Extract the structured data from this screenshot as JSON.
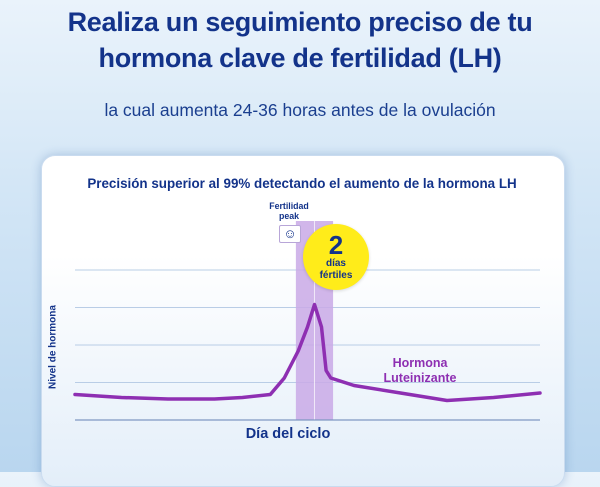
{
  "header": {
    "headline_line1": "Realiza un seguimiento preciso de tu",
    "headline_line2": "hormona clave de fertilidad (LH)",
    "subheadline": "la cual aumenta 24-36 horas antes de la ovulación"
  },
  "badge": {
    "number": "2",
    "line1": "días",
    "line2": "fértiles",
    "color": "#ffec1a"
  },
  "peak": {
    "line1": "Fertilidad",
    "line2": "peak",
    "icon": "smiley-icon"
  },
  "colors": {
    "title": "#13338a",
    "curve": "#8e2fb2",
    "band": "#c9a9e6"
  },
  "chart_data": {
    "type": "line",
    "title": "Precisión superior al 99% detectando el aumento de la hormona LH",
    "xlabel": "Día del ciclo",
    "ylabel": "Nivel de hormona",
    "x_ticks_shown": false,
    "y_ticks_shown": false,
    "grid": true,
    "legend": "none",
    "xlim": [
      0,
      100
    ],
    "ylim": [
      0,
      100
    ],
    "series": [
      {
        "name": "Hormona Luteinizante",
        "x": [
          0,
          10,
          20,
          30,
          36,
          42,
          45,
          48,
          50,
          51.5,
          53,
          54,
          55,
          60,
          70,
          80,
          90,
          100
        ],
        "y": [
          17,
          15,
          14,
          14,
          15,
          17,
          28,
          46,
          62,
          77,
          62,
          33,
          28,
          23,
          18,
          13,
          15,
          18
        ]
      }
    ],
    "highlight_band": {
      "x_start": 47.5,
      "x_end": 55.5
    }
  }
}
